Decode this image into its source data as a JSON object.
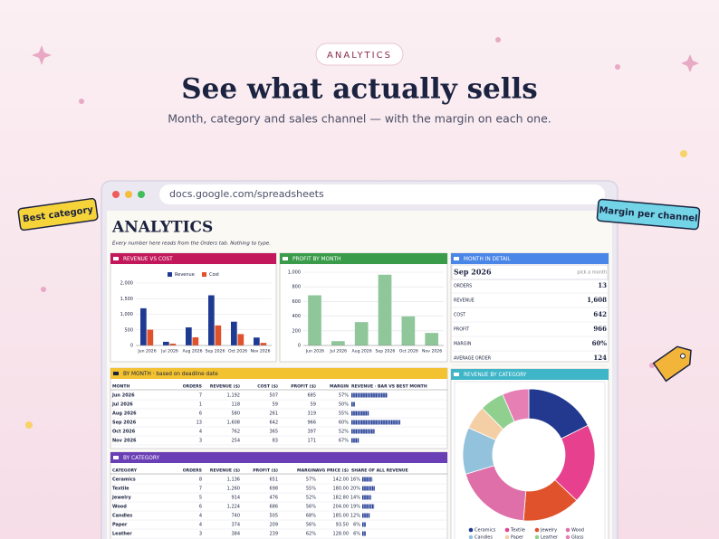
{
  "badge": "ANALYTICS",
  "title": "See what actually sells",
  "subtitle": "Month, category and sales channel — with the margin on each one.",
  "browser": {
    "url": "docs.google.com/spreadsheets"
  },
  "stickers": [
    "Best category",
    "Margin per channel"
  ],
  "sheet": {
    "title": "ANALYTICS",
    "note": "Every number here reads from the Orders tab. Nothing to type.",
    "revenue_vs_cost": {
      "type": "bar",
      "title": "REVENUE VS COST",
      "categories": [
        "Jun 2026",
        "Jul 2026",
        "Aug 2026",
        "Sep 2026",
        "Oct 2026",
        "Nov 2026"
      ],
      "series": [
        {
          "name": "Revenue",
          "color": "#1f3a93",
          "values": [
            1192,
            118,
            580,
            1608,
            762,
            254
          ]
        },
        {
          "name": "Cost",
          "color": "#e0522b",
          "values": [
            507,
            59,
            261,
            642,
            365,
            83
          ]
        }
      ],
      "ylim": [
        0,
        2000
      ],
      "yticks": [
        0,
        500,
        {
          "value": 1000,
          "label": "1,000"
        },
        {
          "value": 1500,
          "label": "1,500"
        },
        {
          "value": 2000,
          "label": "2,000"
        }
      ],
      "grid": true
    },
    "profit_by_month": {
      "type": "bar",
      "title": "PROFIT BY MONTH",
      "categories": [
        "Jun 2026",
        "Jul 2026",
        "Aug 2026",
        "Sep 2026",
        "Oct 2026",
        "Nov 2026"
      ],
      "values": [
        685,
        59,
        319,
        966,
        397,
        171
      ],
      "color": "#8fc79a",
      "ylim": [
        0,
        1000
      ],
      "yticks": [
        0,
        200,
        400,
        600,
        800,
        {
          "value": 1000,
          "label": "1,000"
        }
      ],
      "grid": true
    },
    "month_detail": {
      "title": "MONTH IN DETAIL",
      "selected": "Sep 2026",
      "hint": "pick a month",
      "rows": [
        [
          "ORDERS",
          "13"
        ],
        [
          "REVENUE",
          "1,608"
        ],
        [
          "COST",
          "642"
        ],
        [
          "PROFIT",
          "966"
        ],
        [
          "MARGIN",
          "60%"
        ],
        [
          "AVERAGE ORDER",
          "124"
        ]
      ]
    },
    "by_month": {
      "title": "BY MONTH · based on deadline date",
      "columns": [
        "MONTH",
        "ORDERS",
        "REVENUE ($)",
        "COST ($)",
        "PROFIT ($)",
        "MARGIN",
        "REVENUE · BAR VS BEST MONTH"
      ],
      "rows": [
        [
          "Jun 2026",
          7,
          {
            "value": 1192,
            "label": "1,192"
          },
          507,
          685,
          "57%"
        ],
        [
          "Jul 2026",
          1,
          {
            "value": 118,
            "label": "118"
          },
          59,
          59,
          "50%"
        ],
        [
          "Aug 2026",
          6,
          {
            "value": 580,
            "label": "580"
          },
          261,
          319,
          "55%"
        ],
        [
          "Sep 2026",
          13,
          {
            "value": 1608,
            "label": "1,608"
          },
          642,
          966,
          "60%"
        ],
        [
          "Oct 2026",
          4,
          {
            "value": 762,
            "label": "762"
          },
          365,
          397,
          "52%"
        ],
        [
          "Nov 2026",
          3,
          {
            "value": 254,
            "label": "254"
          },
          83,
          171,
          "67%"
        ]
      ]
    },
    "by_category": {
      "title": "BY CATEGORY",
      "columns": [
        "CATEGORY",
        "ORDERS",
        "REVENUE ($)",
        "PROFIT ($)",
        "MARGIN",
        "AVG PRICE ($)",
        "SHARE OF ALL REVENUE"
      ],
      "rows": [
        [
          "Ceramics",
          8,
          "1,136",
          651,
          "57%",
          "142.00",
          {
            "value": 16,
            "label": "16%"
          }
        ],
        [
          "Textile",
          7,
          "1,260",
          698,
          "55%",
          "180.00",
          {
            "value": 20,
            "label": "20%"
          }
        ],
        [
          "Jewelry",
          5,
          "914",
          476,
          "52%",
          "182.80",
          {
            "value": 14,
            "label": "14%"
          }
        ],
        [
          "Wood",
          6,
          "1,224",
          686,
          "56%",
          "204.00",
          {
            "value": 19,
            "label": "19%"
          }
        ],
        [
          "Candles",
          4,
          "740",
          505,
          "68%",
          "185.00",
          {
            "value": 12,
            "label": "12%"
          }
        ],
        [
          "Paper",
          4,
          "374",
          209,
          "56%",
          "93.50",
          {
            "value": 6,
            "label": "6%"
          }
        ],
        [
          "Leather",
          3,
          "384",
          239,
          "62%",
          "128.00",
          {
            "value": 6,
            "label": "6%"
          }
        ]
      ]
    },
    "revenue_by_category": {
      "type": "pie",
      "title": "REVENUE BY CATEGORY",
      "categories": [
        "Ceramics",
        "Textile",
        "Jewelry",
        "Wood",
        "Candles",
        "Paper",
        "Leather",
        "Glass"
      ],
      "values": [
        1136,
        1260,
        914,
        1224,
        740,
        374,
        384,
        420
      ],
      "colors": [
        "#22398f",
        "#e6408e",
        "#e0522b",
        "#de6fa8",
        "#93c2dd",
        "#f4cfa5",
        "#8fd08f",
        "#e57fb4"
      ]
    }
  }
}
